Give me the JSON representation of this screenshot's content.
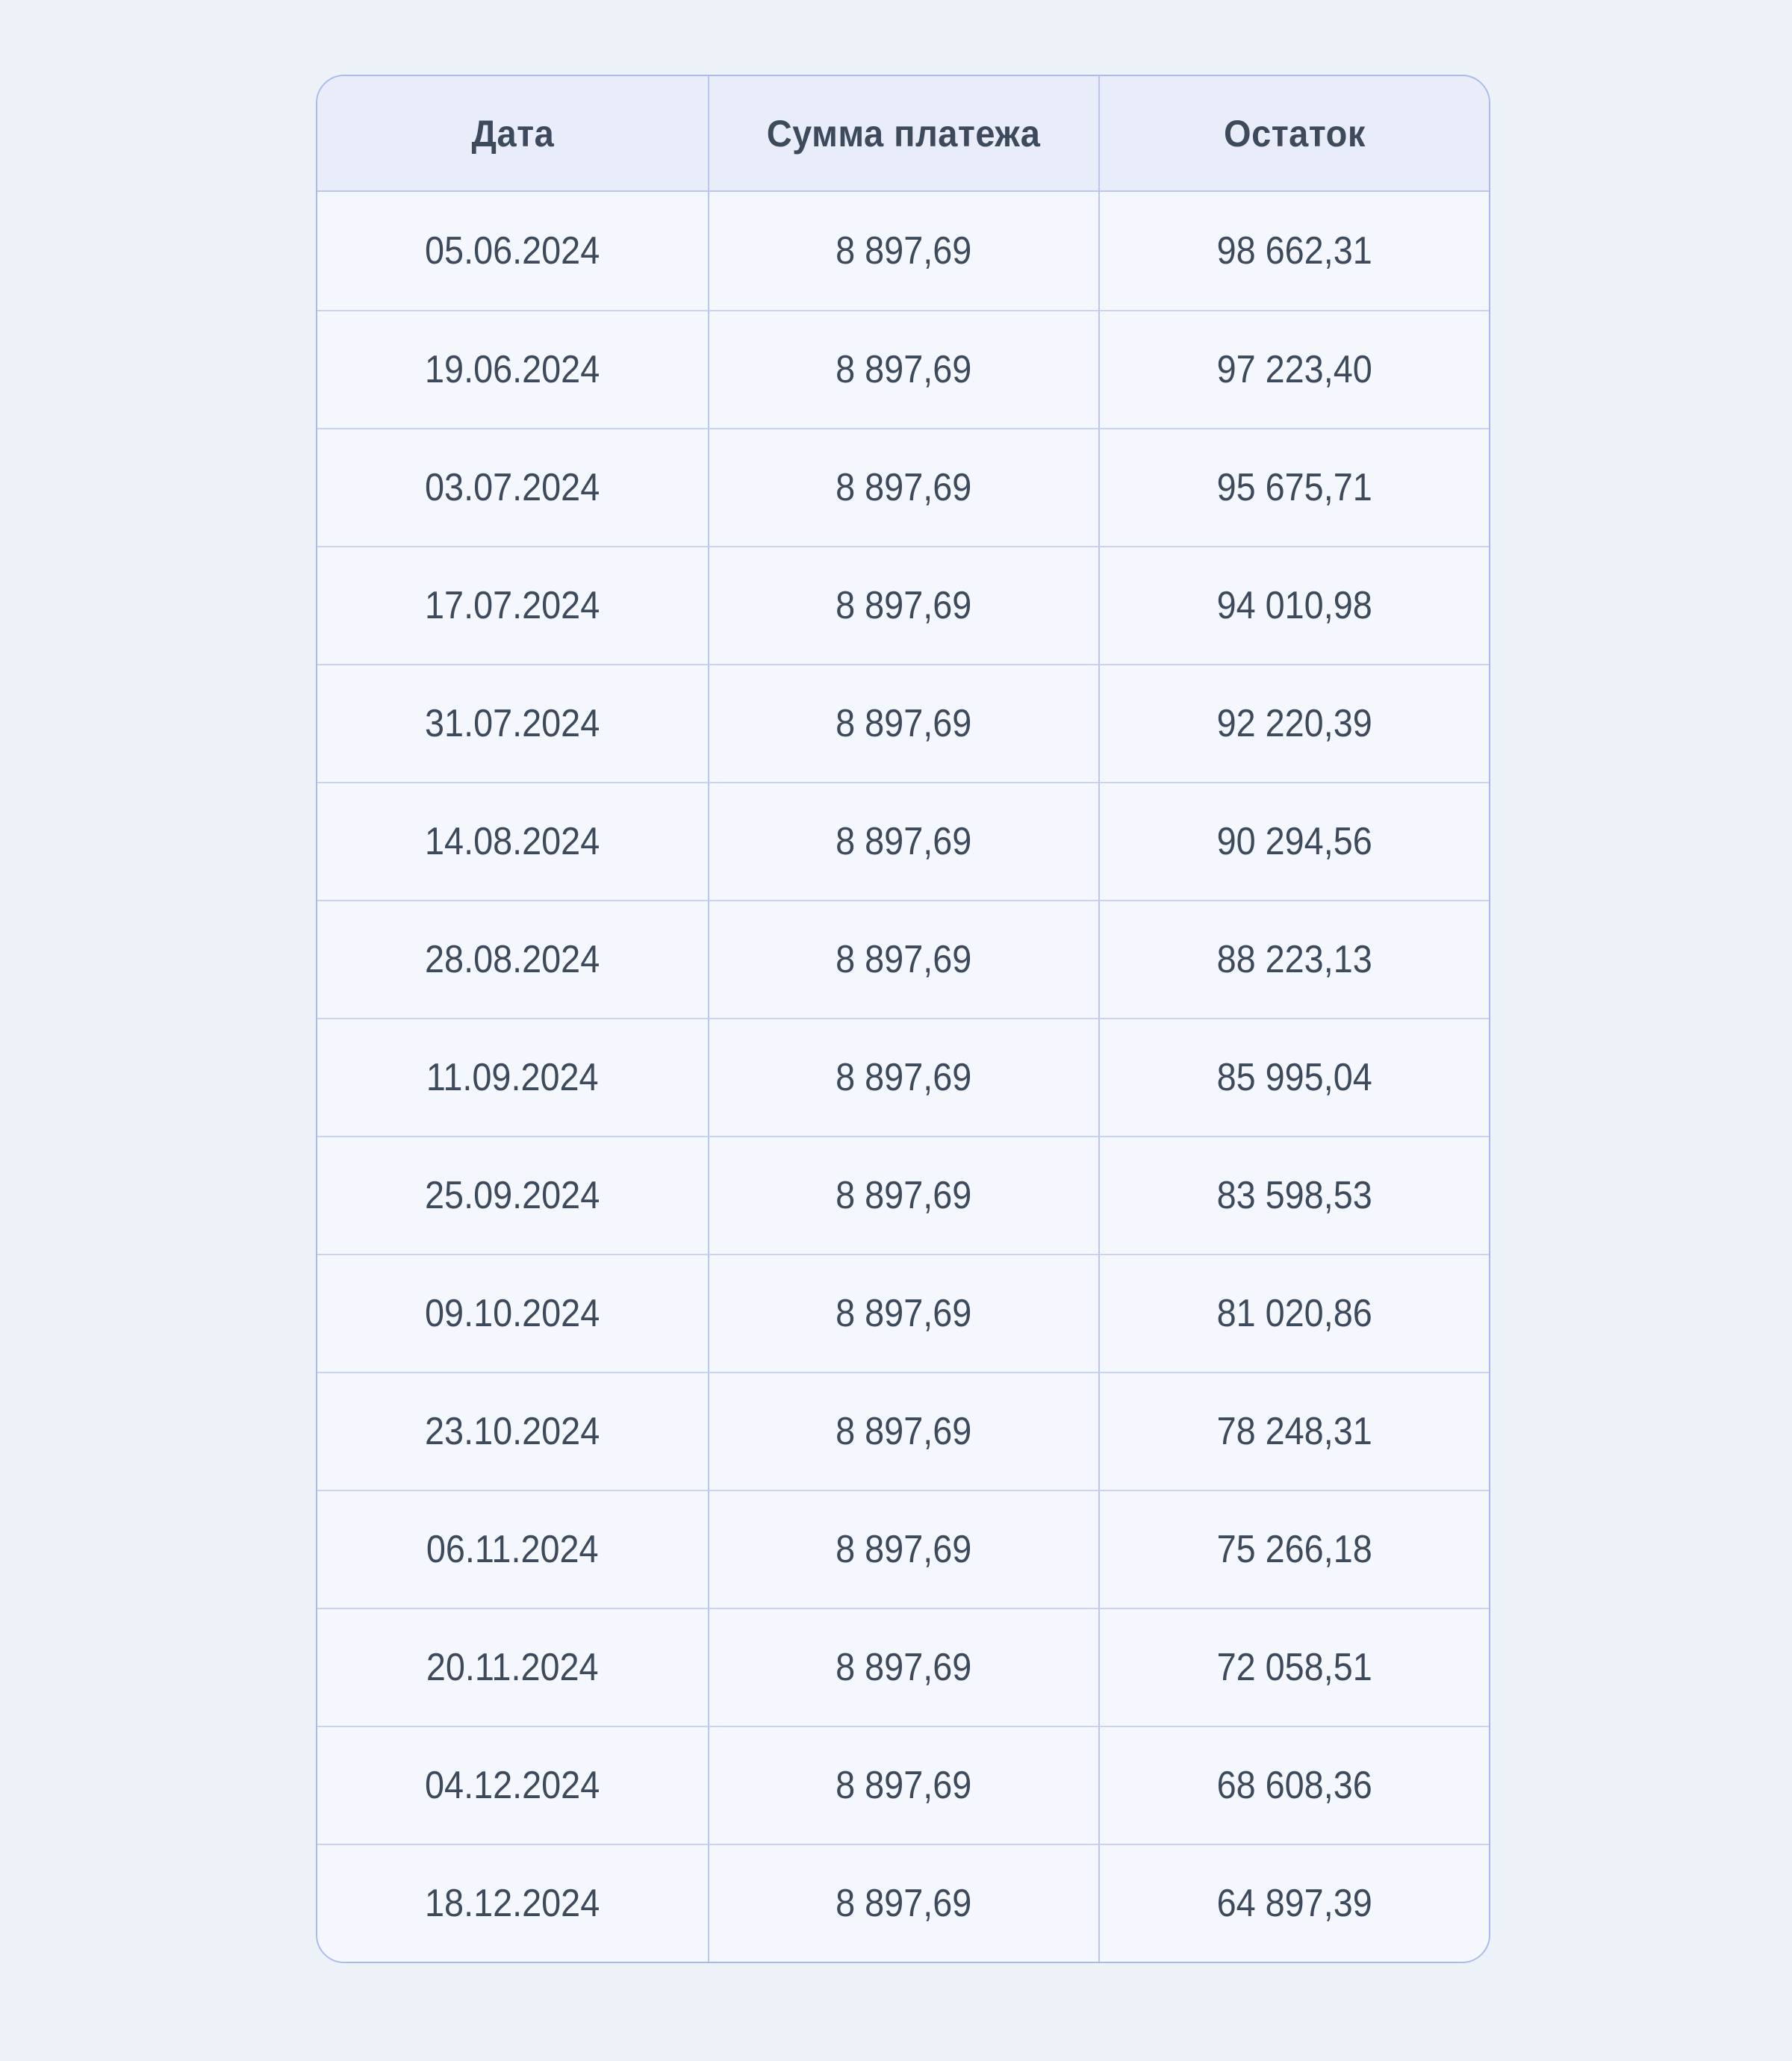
{
  "colors": {
    "page_bg": "#edf2f9",
    "header_bg": "#e8edf9",
    "row_bg": "#f4f7fd",
    "grid_line": "#b7c6f2",
    "row_divider": "#c8d3f3",
    "card_border": "#a9baee",
    "text": "#3d4a5c"
  },
  "table": {
    "columns": [
      {
        "key": "date",
        "label": "Дата"
      },
      {
        "key": "payment",
        "label": "Сумма платежа"
      },
      {
        "key": "balance",
        "label": "Остаток"
      }
    ],
    "rows": [
      {
        "date": "05.06.2024",
        "payment": "8 897,69",
        "balance": "98 662,31"
      },
      {
        "date": "19.06.2024",
        "payment": "8 897,69",
        "balance": "97 223,40"
      },
      {
        "date": "03.07.2024",
        "payment": "8 897,69",
        "balance": "95 675,71"
      },
      {
        "date": "17.07.2024",
        "payment": "8 897,69",
        "balance": "94 010,98"
      },
      {
        "date": "31.07.2024",
        "payment": "8 897,69",
        "balance": "92 220,39"
      },
      {
        "date": "14.08.2024",
        "payment": "8 897,69",
        "balance": "90 294,56"
      },
      {
        "date": "28.08.2024",
        "payment": "8 897,69",
        "balance": "88 223,13"
      },
      {
        "date": "11.09.2024",
        "payment": "8 897,69",
        "balance": "85 995,04"
      },
      {
        "date": "25.09.2024",
        "payment": "8 897,69",
        "balance": "83 598,53"
      },
      {
        "date": "09.10.2024",
        "payment": "8 897,69",
        "balance": "81 020,86"
      },
      {
        "date": "23.10.2024",
        "payment": "8 897,69",
        "balance": "78 248,31"
      },
      {
        "date": "06.11.2024",
        "payment": "8 897,69",
        "balance": "75 266,18"
      },
      {
        "date": "20.11.2024",
        "payment": "8 897,69",
        "balance": "72 058,51"
      },
      {
        "date": "04.12.2024",
        "payment": "8 897,69",
        "balance": "68 608,36"
      },
      {
        "date": "18.12.2024",
        "payment": "8 897,69",
        "balance": "64 897,39"
      }
    ]
  }
}
